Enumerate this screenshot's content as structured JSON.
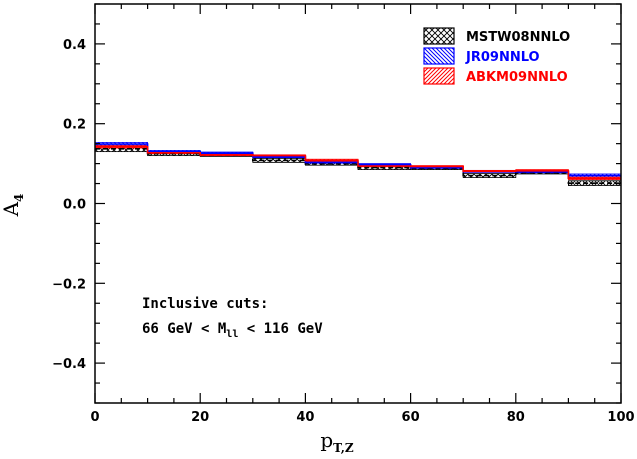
{
  "chart_data": {
    "type": "step",
    "xlabel": "p",
    "xlabel_sub": "T,Z",
    "ylabel": "A",
    "ylabel_sub": "4",
    "xlim": [
      0,
      100
    ],
    "ylim": [
      -0.5,
      0.5
    ],
    "x_ticks": [
      0,
      20,
      40,
      60,
      80,
      100
    ],
    "y_ticks": [
      -0.4,
      -0.2,
      0.0,
      0.2,
      0.4
    ],
    "y_tick_labels": [
      "−0.4",
      "−0.2",
      "0.0",
      "0.2",
      "0.4"
    ],
    "x_tick_labels": [
      "0",
      "20",
      "40",
      "60",
      "80",
      "100"
    ],
    "bin_edges": [
      0,
      10,
      20,
      30,
      40,
      50,
      60,
      70,
      80,
      90,
      100
    ],
    "series": [
      {
        "name": "MSTW08NNLO",
        "color": "#000000",
        "pattern": "crosshatch",
        "central": [
          0.137,
          0.125,
          0.122,
          0.108,
          0.099,
          0.09,
          0.088,
          0.07,
          0.077,
          0.051
        ],
        "lower": [
          0.13,
          0.12,
          0.118,
          0.103,
          0.096,
          0.085,
          0.085,
          0.065,
          0.074,
          0.045
        ],
        "upper": [
          0.143,
          0.129,
          0.126,
          0.113,
          0.102,
          0.094,
          0.091,
          0.075,
          0.08,
          0.057
        ]
      },
      {
        "name": "JR09NNLO",
        "color": "#0000ff",
        "pattern": "diag-left",
        "central": [
          0.149,
          0.13,
          0.126,
          0.117,
          0.103,
          0.097,
          0.09,
          0.08,
          0.079,
          0.07
        ],
        "lower": [
          0.145,
          0.127,
          0.124,
          0.115,
          0.101,
          0.095,
          0.088,
          0.078,
          0.077,
          0.066
        ],
        "upper": [
          0.153,
          0.133,
          0.129,
          0.12,
          0.105,
          0.1,
          0.092,
          0.083,
          0.081,
          0.074
        ]
      },
      {
        "name": "ABKM09NNLO",
        "color": "#ff0000",
        "pattern": "diag-right",
        "central": [
          0.142,
          0.127,
          0.122,
          0.12,
          0.108,
          0.094,
          0.093,
          0.081,
          0.082,
          0.063
        ],
        "lower": [
          0.139,
          0.125,
          0.12,
          0.118,
          0.105,
          0.092,
          0.091,
          0.079,
          0.08,
          0.06
        ],
        "upper": [
          0.145,
          0.129,
          0.124,
          0.122,
          0.111,
          0.096,
          0.095,
          0.083,
          0.085,
          0.066
        ]
      }
    ],
    "legend_position": "top-right",
    "annotation": {
      "line1": "Inclusive cuts:",
      "line2_pre": "66 GeV < M",
      "line2_sub": "ll",
      "line2_post": " < 116 GeV"
    }
  }
}
